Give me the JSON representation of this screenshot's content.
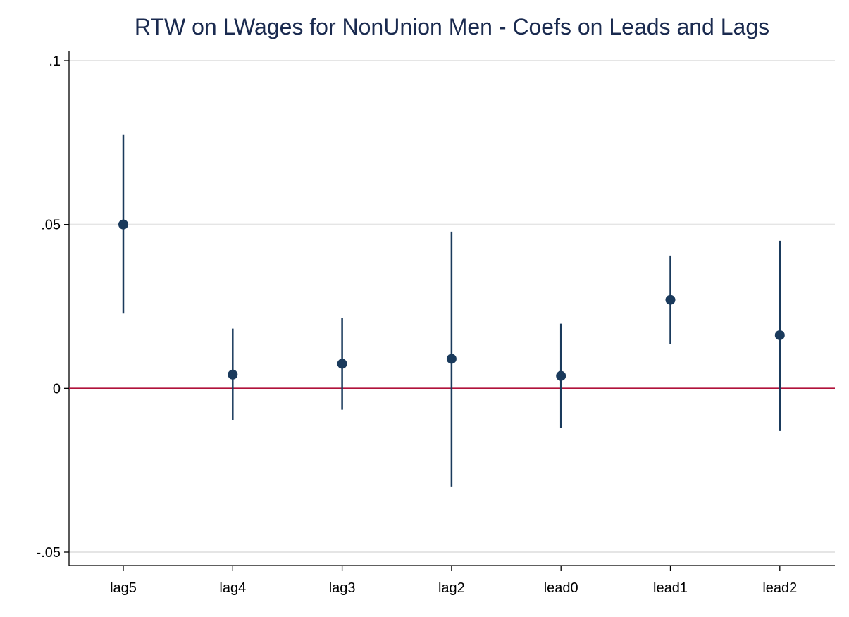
{
  "chart_data": {
    "type": "scatter",
    "title": "RTW on LWages for NonUnion Men - Coefs on Leads and Lags",
    "xlabel": "",
    "ylabel": "",
    "categories": [
      "lag5",
      "lag4",
      "lag3",
      "lag2",
      "lead0",
      "lead1",
      "lead2"
    ],
    "series": [
      {
        "estimates": [
          0.05,
          0.0042,
          0.0075,
          0.009,
          0.0038,
          0.027,
          0.0162
        ],
        "ci_lower": [
          0.0228,
          -0.0097,
          -0.0065,
          -0.03,
          -0.012,
          0.0135,
          -0.013
        ],
        "ci_upper": [
          0.0775,
          0.0182,
          0.0215,
          0.0478,
          0.0197,
          0.0405,
          0.045
        ]
      }
    ],
    "ylim": [
      -0.054,
      0.103
    ],
    "yticks": [
      -0.05,
      0,
      0.05,
      0.1
    ],
    "ytick_labels": [
      "-.05",
      "0",
      ".05",
      ".1"
    ],
    "reference_line": 0,
    "grid": true,
    "colors": {
      "marker": "#1a3a5c",
      "reference_line": "#b0123a",
      "grid": "#e5e5e5",
      "title": "#1a2a4f"
    }
  }
}
